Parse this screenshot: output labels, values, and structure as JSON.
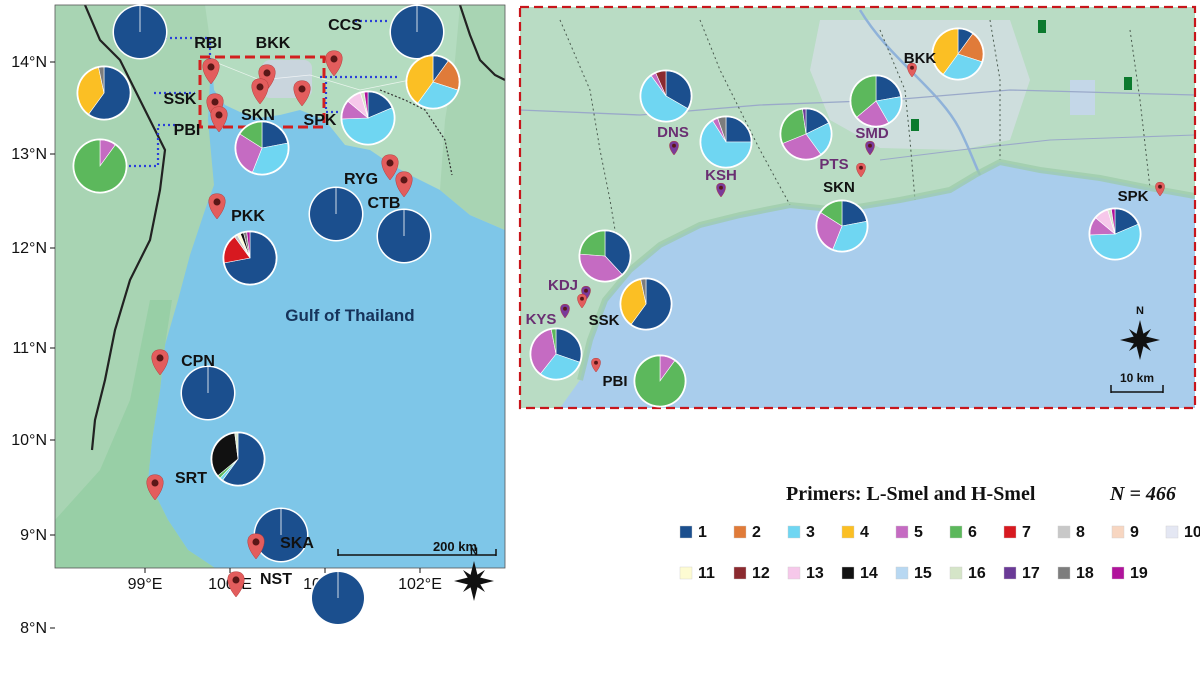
{
  "main_map": {
    "lat_ticks": [
      "14°N",
      "13°N",
      "12°N",
      "11°N",
      "10°N",
      "9°N",
      "8°N"
    ],
    "lon_ticks": [
      "99°E",
      "100°E",
      "101°E",
      "102°E"
    ],
    "sea_label": "Gulf of Thailand",
    "scale_label": "200 km",
    "north_label": "N",
    "sites": [
      {
        "code": "RBI",
        "counts": [
          50
        ]
      },
      {
        "code": "CCS",
        "counts": [
          50
        ]
      },
      {
        "code": "BKK",
        "counts": [
          10,
          20,
          30,
          40
        ]
      },
      {
        "code": "SSK",
        "counts": [
          18,
          0,
          0,
          11,
          0,
          0,
          0,
          0,
          0,
          0,
          0,
          0,
          0,
          0,
          0,
          0,
          0,
          1
        ]
      },
      {
        "code": "SKN",
        "counts": [
          11,
          0,
          17,
          0,
          14,
          8
        ]
      },
      {
        "code": "SPK",
        "counts": [
          8,
          0,
          24,
          0,
          5,
          0,
          0,
          0,
          0,
          0,
          0,
          0,
          4,
          0,
          0,
          1,
          0,
          0,
          1
        ]
      },
      {
        "code": "PBI",
        "counts": [
          0,
          0,
          0,
          0,
          3,
          27
        ]
      },
      {
        "code": "RYG",
        "counts": [
          50
        ]
      },
      {
        "code": "CTB",
        "counts": [
          50
        ]
      },
      {
        "code": "PKK",
        "counts": [
          36,
          0,
          0,
          0,
          0,
          0,
          9,
          1,
          0,
          0,
          1,
          0,
          0,
          1,
          0,
          0,
          0,
          1,
          1
        ]
      },
      {
        "code": "CPN",
        "counts": [
          50
        ]
      },
      {
        "code": "SRT",
        "counts": [
          30,
          0,
          1,
          0,
          0,
          1,
          0,
          0,
          0,
          0,
          0,
          0,
          0,
          17,
          0,
          1
        ]
      },
      {
        "code": "NST",
        "counts": [
          50
        ]
      },
      {
        "code": "SKA",
        "counts": [
          50
        ]
      }
    ]
  },
  "inset_map": {
    "north_label": "N",
    "scale_label": "10 km",
    "sites": [
      {
        "code": "BKK",
        "counts": [
          10,
          20,
          30,
          40
        ]
      },
      {
        "code": "DNS",
        "counts": [
          10,
          0,
          17,
          0,
          1,
          0,
          0,
          0,
          0,
          0,
          0,
          2
        ]
      },
      {
        "code": "KSH",
        "counts": [
          14,
          0,
          37,
          0,
          2,
          0,
          0,
          0,
          0,
          0,
          0,
          0,
          0,
          0,
          0,
          0,
          0,
          3
        ]
      },
      {
        "code": "SMD",
        "counts": [
          8,
          0,
          7,
          0,
          8,
          13
        ]
      },
      {
        "code": "PTS",
        "counts": [
          8,
          0,
          10,
          0,
          13,
          13,
          0,
          0,
          0,
          0,
          0,
          0,
          0,
          0,
          0,
          0,
          1
        ]
      },
      {
        "code": "SKN",
        "counts": [
          11,
          0,
          17,
          0,
          14,
          8
        ]
      },
      {
        "code": "SPK",
        "counts": [
          8,
          0,
          24,
          0,
          5,
          0,
          0,
          0,
          0,
          0,
          0,
          0,
          4,
          0,
          0,
          1,
          0,
          0,
          1
        ]
      },
      {
        "code": "KDJ",
        "counts": [
          16,
          0,
          0,
          0,
          16,
          10
        ]
      },
      {
        "code": "SSK",
        "counts": [
          18,
          0,
          0,
          11,
          0,
          0,
          0,
          0,
          0,
          0,
          0,
          0,
          0,
          0,
          0,
          0,
          0,
          1
        ]
      },
      {
        "code": "KYS",
        "counts": [
          10,
          0,
          10,
          0,
          12,
          1
        ]
      },
      {
        "code": "PBI",
        "counts": [
          0,
          0,
          0,
          0,
          3,
          27
        ]
      }
    ]
  },
  "legend": {
    "title": "Primers: L-Smel and H-Smel",
    "n_label": "N = 466",
    "items": [
      {
        "label": "1",
        "color": "#1b4f8e"
      },
      {
        "label": "2",
        "color": "#e07b39"
      },
      {
        "label": "3",
        "color": "#6fd6f2"
      },
      {
        "label": "4",
        "color": "#fbbf24"
      },
      {
        "label": "5",
        "color": "#c56bc2"
      },
      {
        "label": "6",
        "color": "#5cb85c"
      },
      {
        "label": "7",
        "color": "#d71920"
      },
      {
        "label": "8",
        "color": "#c8c8c8"
      },
      {
        "label": "9",
        "color": "#f7d6c1"
      },
      {
        "label": "10",
        "color": "#e4e7f3"
      },
      {
        "label": "11",
        "color": "#fdfbd2"
      },
      {
        "label": "12",
        "color": "#8b2a2f"
      },
      {
        "label": "13",
        "color": "#f6c8ea"
      },
      {
        "label": "14",
        "color": "#111111"
      },
      {
        "label": "15",
        "color": "#b8d8f2"
      },
      {
        "label": "16",
        "color": "#d5e5c8"
      },
      {
        "label": "17",
        "color": "#6a3a96"
      },
      {
        "label": "18",
        "color": "#7d7d7d"
      },
      {
        "label": "19",
        "color": "#b0139b"
      }
    ]
  }
}
